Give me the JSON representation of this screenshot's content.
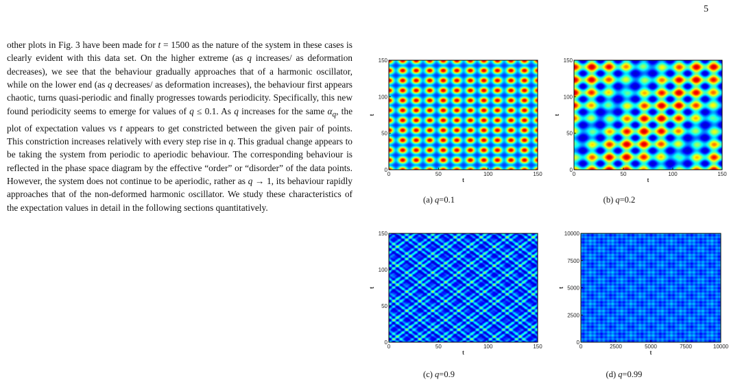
{
  "page_number": "5",
  "body_paragraph": {
    "p01": "other plots in Fig. 3 have been made for ",
    "m01a": "t",
    "p02": " = 1500 as the nature of the system in these cases is clearly evident with this data set. On the higher extreme (as ",
    "m02": "q",
    "p03": " increases/ as deformation decreases), we see that the behaviour gradually approaches that of a harmonic oscillator, while on the lower end (as ",
    "m03": "q",
    "p04": " decreases/ as deformation increases), the behaviour first appears chaotic, turns quasi-periodic and finally progresses towards periodicity. Specifically, this new found periodicity seems to emerge for values of ",
    "m04": "q",
    "p05": " ≤ 0.1. As ",
    "m05": "q",
    "p06": " increases for the same ",
    "m06": "α",
    "m06s": "q",
    "p07": ", the plot of expectation values vs ",
    "m07": "t",
    "p08": " appears to get constricted between the given pair of points. This constriction increases relatively with every step rise in ",
    "m08": "q",
    "p09": ". This gradual change appears to be taking the system from periodic to aperiodic behaviour. The corresponding behaviour is reflected in the phase space diagram by the effective “order” or “disorder” of the data points. However, the system does not continue to be aperiodic, rather as ",
    "m09": "q",
    "p10": " → 1, its behaviour rapidly approaches that of the non-deformed harmonic oscillator. We study these characteristics of the expectation values in detail in the following sections quantitatively."
  },
  "figure": {
    "panels": [
      {
        "id": "a",
        "caption": "(a) q=0.1",
        "xlabel": "t",
        "ylabel": "t",
        "xticks": [
          "0",
          "50",
          "100",
          "150"
        ],
        "yticks": [
          "0",
          "50",
          "100",
          "150"
        ],
        "range": [
          0,
          150
        ],
        "pattern": "periodic-lattice"
      },
      {
        "id": "b",
        "caption": "(b) q=0.2",
        "xlabel": "t",
        "ylabel": "t",
        "xticks": [
          "0",
          "50",
          "100",
          "150"
        ],
        "yticks": [
          "0",
          "50",
          "100",
          "150"
        ],
        "range": [
          0,
          150
        ],
        "pattern": "quasi-periodic-lattice"
      },
      {
        "id": "c",
        "caption": "(c) q=0.9",
        "xlabel": "t",
        "ylabel": "t",
        "xticks": [
          "0",
          "50",
          "100",
          "150"
        ],
        "yticks": [
          "0",
          "50",
          "100",
          "150"
        ],
        "range": [
          0,
          150
        ],
        "pattern": "aperiodic-web"
      },
      {
        "id": "d",
        "caption": "(d) q=0.99",
        "xlabel": "t",
        "ylabel": "t",
        "xticks": [
          "0",
          "2500",
          "5000",
          "7500",
          "10000"
        ],
        "yticks": [
          "0",
          "2500",
          "5000",
          "7500",
          "10000"
        ],
        "range": [
          0,
          10000
        ],
        "pattern": "near-harmonic-grid"
      }
    ],
    "colormap": [
      "#00008f",
      "#0000ff",
      "#00ffff",
      "#ffff00",
      "#ff0000",
      "#800000"
    ]
  }
}
